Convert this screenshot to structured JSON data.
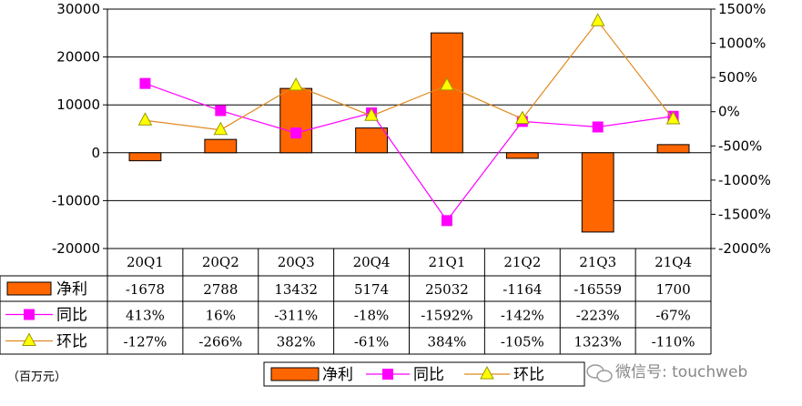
{
  "chart_data": {
    "type": "bar",
    "categories": [
      "20Q1",
      "20Q2",
      "20Q3",
      "20Q4",
      "21Q1",
      "21Q2",
      "21Q3",
      "21Q4"
    ],
    "series": [
      {
        "name": "净利",
        "kind": "bar",
        "axis": "left",
        "color": "#ff6600",
        "values": [
          -1678,
          2788,
          13432,
          5174,
          25032,
          -1164,
          -16559,
          1700
        ]
      },
      {
        "name": "同比",
        "kind": "line",
        "axis": "right",
        "color": "#ff00ff",
        "marker": "square",
        "values": [
          413,
          16,
          -311,
          -18,
          -1592,
          -142,
          -223,
          -67
        ]
      },
      {
        "name": "环比",
        "kind": "line",
        "axis": "right",
        "color": "#e08a1e",
        "marker": "triangle",
        "values": [
          -127,
          -266,
          382,
          -61,
          384,
          -105,
          1323,
          -110
        ]
      }
    ],
    "table_rows": [
      {
        "label": "净利",
        "cells": [
          "-1678",
          "2788",
          "13432",
          "5174",
          "25032",
          "-1164",
          "-16559",
          "1700"
        ]
      },
      {
        "label": "同比",
        "cells": [
          "413%",
          "16%",
          "-311%",
          "-18%",
          "-1592%",
          "-142%",
          "-223%",
          "-67%"
        ]
      },
      {
        "label": "环比",
        "cells": [
          "-127%",
          "-266%",
          "382%",
          "-61%",
          "384%",
          "-105%",
          "1323%",
          "-110%"
        ]
      }
    ],
    "y_left": {
      "range": [
        -20000,
        30000
      ],
      "ticks": [
        "30000",
        "20000",
        "10000",
        "0",
        "-10000",
        "-20000"
      ]
    },
    "y_right": {
      "range": [
        -2000,
        1500
      ],
      "ticks": [
        "1500%",
        "1000%",
        "500%",
        "0%",
        "-500%",
        "-1000%",
        "-1500%",
        "-2000%"
      ]
    },
    "grid": true,
    "legend_position": "bottom-center",
    "unit_note": "（百万元）",
    "watermark": "微信号: touchweb"
  }
}
